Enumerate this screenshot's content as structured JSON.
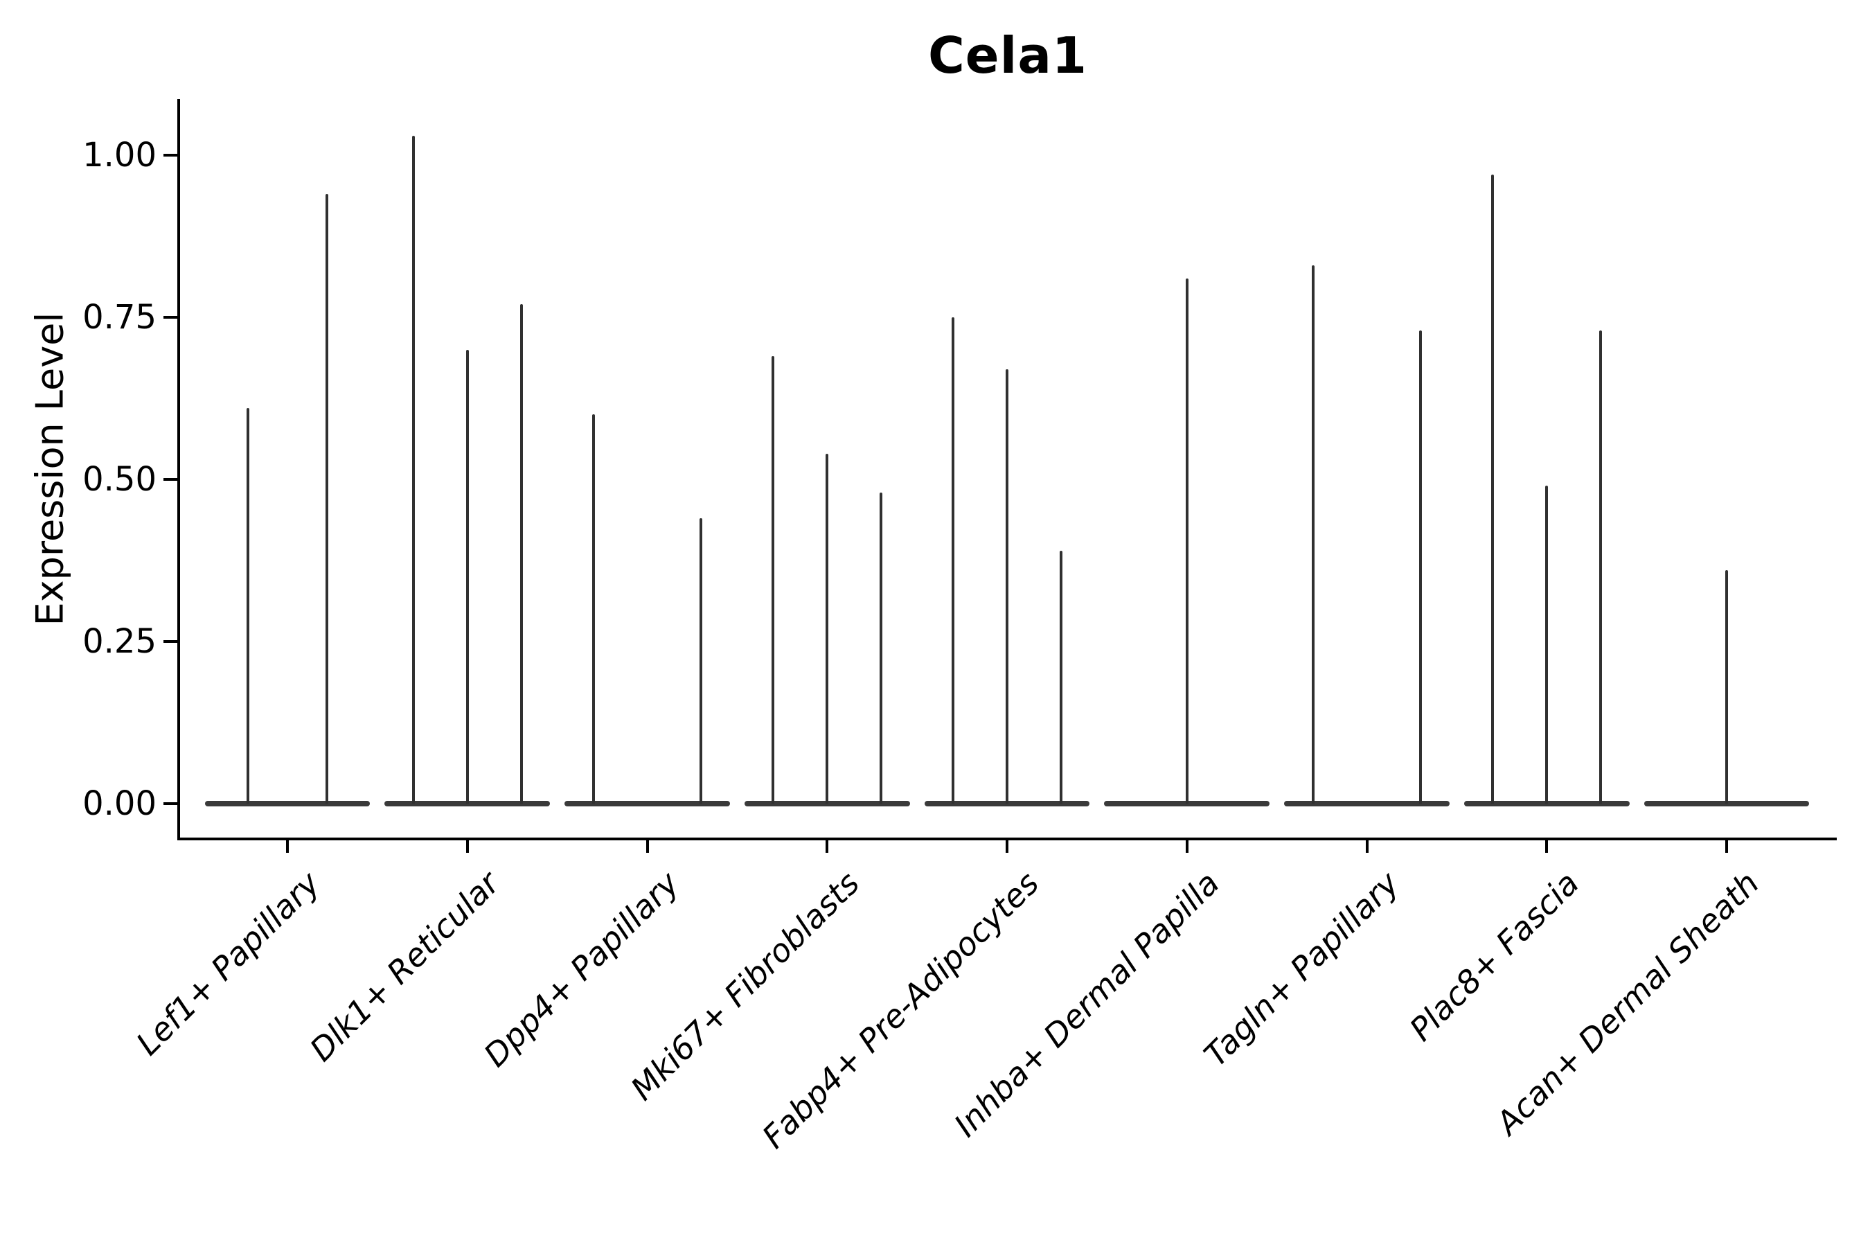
{
  "chart_data": {
    "type": "violin",
    "title": "Cela1",
    "ylabel": "Expression Level",
    "xlabel": "",
    "ylim": [
      -0.05,
      1.09
    ],
    "yticks": [
      0,
      0.25,
      0.5,
      0.75,
      1.0
    ],
    "ytick_labels": [
      "0.00",
      "0.25",
      "0.50",
      "0.75",
      "1.00"
    ],
    "grid": false,
    "legend": null,
    "baseline_value": 0,
    "violin_body_width": 0.92,
    "categories": [
      "Lef1+ Papillary",
      "Dlk1+ Reticular",
      "Dpp4+ Papillary",
      "Mki67+ Fibroblasts",
      "Fabp4+ Pre-Adipocytes",
      "Inhba+ Dermal Papilla",
      "Tagln+ Papillary",
      "Plac8+ Fascia",
      "Acan+ Dermal Sheath"
    ],
    "series": [
      {
        "category": "Lef1+ Papillary",
        "violins": [
          {
            "offset": -0.22,
            "max": 0.61
          },
          {
            "offset": 0.22,
            "max": 0.94
          }
        ]
      },
      {
        "category": "Dlk1+ Reticular",
        "violins": [
          {
            "offset": -0.3,
            "max": 1.03
          },
          {
            "offset": 0.0,
            "max": 0.7
          },
          {
            "offset": 0.3,
            "max": 0.77
          }
        ]
      },
      {
        "category": "Dpp4+ Papillary",
        "violins": [
          {
            "offset": -0.3,
            "max": 0.6
          },
          {
            "offset": 0.3,
            "max": 0.44
          }
        ]
      },
      {
        "category": "Mki67+ Fibroblasts",
        "violins": [
          {
            "offset": -0.3,
            "max": 0.69
          },
          {
            "offset": 0.0,
            "max": 0.54
          },
          {
            "offset": 0.3,
            "max": 0.48
          }
        ]
      },
      {
        "category": "Fabp4+ Pre-Adipocytes",
        "violins": [
          {
            "offset": -0.3,
            "max": 0.75
          },
          {
            "offset": 0.0,
            "max": 0.67
          },
          {
            "offset": 0.3,
            "max": 0.39
          }
        ]
      },
      {
        "category": "Inhba+ Dermal Papilla",
        "violins": [
          {
            "offset": 0.0,
            "max": 0.81
          }
        ]
      },
      {
        "category": "Tagln+ Papillary",
        "violins": [
          {
            "offset": -0.3,
            "max": 0.83
          },
          {
            "offset": 0.3,
            "max": 0.73
          }
        ]
      },
      {
        "category": "Plac8+ Fascia",
        "violins": [
          {
            "offset": -0.3,
            "max": 0.97
          },
          {
            "offset": 0.0,
            "max": 0.49
          },
          {
            "offset": 0.3,
            "max": 0.73
          }
        ]
      },
      {
        "category": "Acan+ Dermal Sheath",
        "violins": [
          {
            "offset": 0.0,
            "max": 0.36
          }
        ]
      }
    ],
    "colors": {
      "violin": "#303030",
      "body": "#3a3a3a",
      "axis": "#000000",
      "text": "#000000",
      "background": "#ffffff"
    }
  }
}
